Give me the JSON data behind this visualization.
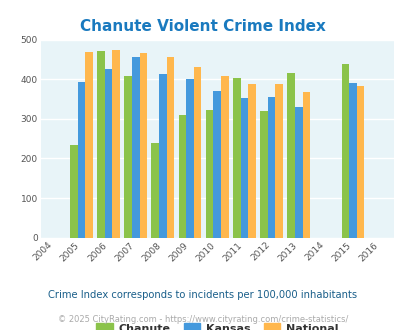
{
  "title": "Chanute Violent Crime Index",
  "title_color": "#1a7abf",
  "years": [
    2005,
    2006,
    2007,
    2008,
    2009,
    2010,
    2011,
    2012,
    2013,
    2015
  ],
  "chanute": [
    235,
    472,
    408,
    240,
    310,
    322,
    402,
    320,
    415,
    438
  ],
  "kansas": [
    392,
    425,
    456,
    412,
    400,
    370,
    353,
    354,
    330,
    390
  ],
  "national": [
    468,
    473,
    467,
    455,
    432,
    407,
    388,
    388,
    368,
    382
  ],
  "chanute_color": "#8bc34a",
  "kansas_color": "#4499dd",
  "national_color": "#ffb74d",
  "bg_color": "#e8f4f8",
  "ylim": [
    0,
    500
  ],
  "yticks": [
    0,
    100,
    200,
    300,
    400,
    500
  ],
  "xlim": [
    2003.5,
    2016.5
  ],
  "xticks": [
    2004,
    2005,
    2006,
    2007,
    2008,
    2009,
    2010,
    2011,
    2012,
    2013,
    2014,
    2015,
    2016
  ],
  "bar_width": 0.28,
  "footer_text1": "Crime Index corresponds to incidents per 100,000 inhabitants",
  "footer_text2": "© 2025 CityRating.com - https://www.cityrating.com/crime-statistics/",
  "legend_labels": [
    "Chanute",
    "Kansas",
    "National"
  ]
}
